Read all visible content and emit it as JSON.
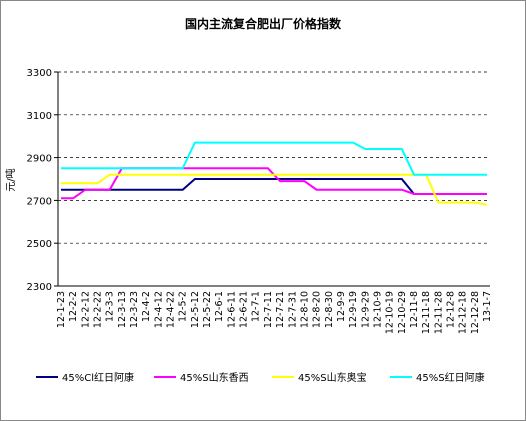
{
  "chart_data": {
    "type": "line",
    "title": "国内主流复合肥出厂价格指数",
    "y_label": "元/吨",
    "categories": [
      "12-1-23",
      "12-2-2",
      "12-2-12",
      "12-2-22",
      "12-3-3",
      "12-3-13",
      "12-3-23",
      "12-4-2",
      "12-4-12",
      "12-4-22",
      "12-5-2",
      "12-5-12",
      "12-5-22",
      "12-6-1",
      "12-6-11",
      "12-6-21",
      "12-7-1",
      "12-7-11",
      "12-7-21",
      "12-7-31",
      "12-8-10",
      "12-8-20",
      "12-8-30",
      "12-9-9",
      "12-9-19",
      "12-9-29",
      "12-10-9",
      "12-10-19",
      "12-10-29",
      "12-11-8",
      "12-11-18",
      "12-11-28",
      "12-12-8",
      "12-12-18",
      "12-12-28",
      "13-1-7"
    ],
    "series": [
      {
        "name": "45%Cl红日阿康",
        "color": "#000080",
        "values": [
          2750,
          2750,
          2750,
          2750,
          2750,
          2750,
          2750,
          2750,
          2750,
          2750,
          2750,
          2800,
          2800,
          2800,
          2800,
          2800,
          2800,
          2800,
          2800,
          2800,
          2800,
          2800,
          2800,
          2800,
          2800,
          2800,
          2800,
          2800,
          2800,
          2730,
          2730,
          2730,
          2730,
          2730,
          2730,
          2730
        ]
      },
      {
        "name": "45%S山东香西",
        "color": "#ff00ff",
        "values": [
          2710,
          2710,
          2750,
          2750,
          2750,
          2850,
          2850,
          2850,
          2850,
          2850,
          2850,
          2850,
          2850,
          2850,
          2850,
          2850,
          2850,
          2850,
          2790,
          2790,
          2790,
          2750,
          2750,
          2750,
          2750,
          2750,
          2750,
          2750,
          2750,
          2730,
          2730,
          2730,
          2730,
          2730,
          2730,
          2730
        ]
      },
      {
        "name": "45%S山东奥宝",
        "color": "#ffff00",
        "values": [
          2780,
          2780,
          2780,
          2780,
          2820,
          2820,
          2820,
          2820,
          2820,
          2820,
          2820,
          2820,
          2820,
          2820,
          2820,
          2820,
          2820,
          2820,
          2820,
          2820,
          2820,
          2820,
          2820,
          2820,
          2820,
          2820,
          2820,
          2820,
          2820,
          2820,
          2820,
          2690,
          2690,
          2690,
          2690,
          2680
        ]
      },
      {
        "name": "45%S红日阿康",
        "color": "#00ffff",
        "values": [
          2850,
          2850,
          2850,
          2850,
          2850,
          2850,
          2850,
          2850,
          2850,
          2850,
          2850,
          2970,
          2970,
          2970,
          2970,
          2970,
          2970,
          2970,
          2970,
          2970,
          2970,
          2970,
          2970,
          2970,
          2970,
          2940,
          2940,
          2940,
          2940,
          2820,
          2820,
          2820,
          2820,
          2820,
          2820,
          2820
        ]
      }
    ],
    "ylim": [
      2300,
      3300
    ],
    "yticks": [
      2300,
      2500,
      2700,
      2900,
      3100,
      3300
    ],
    "grid": true,
    "legend": "bottom"
  }
}
